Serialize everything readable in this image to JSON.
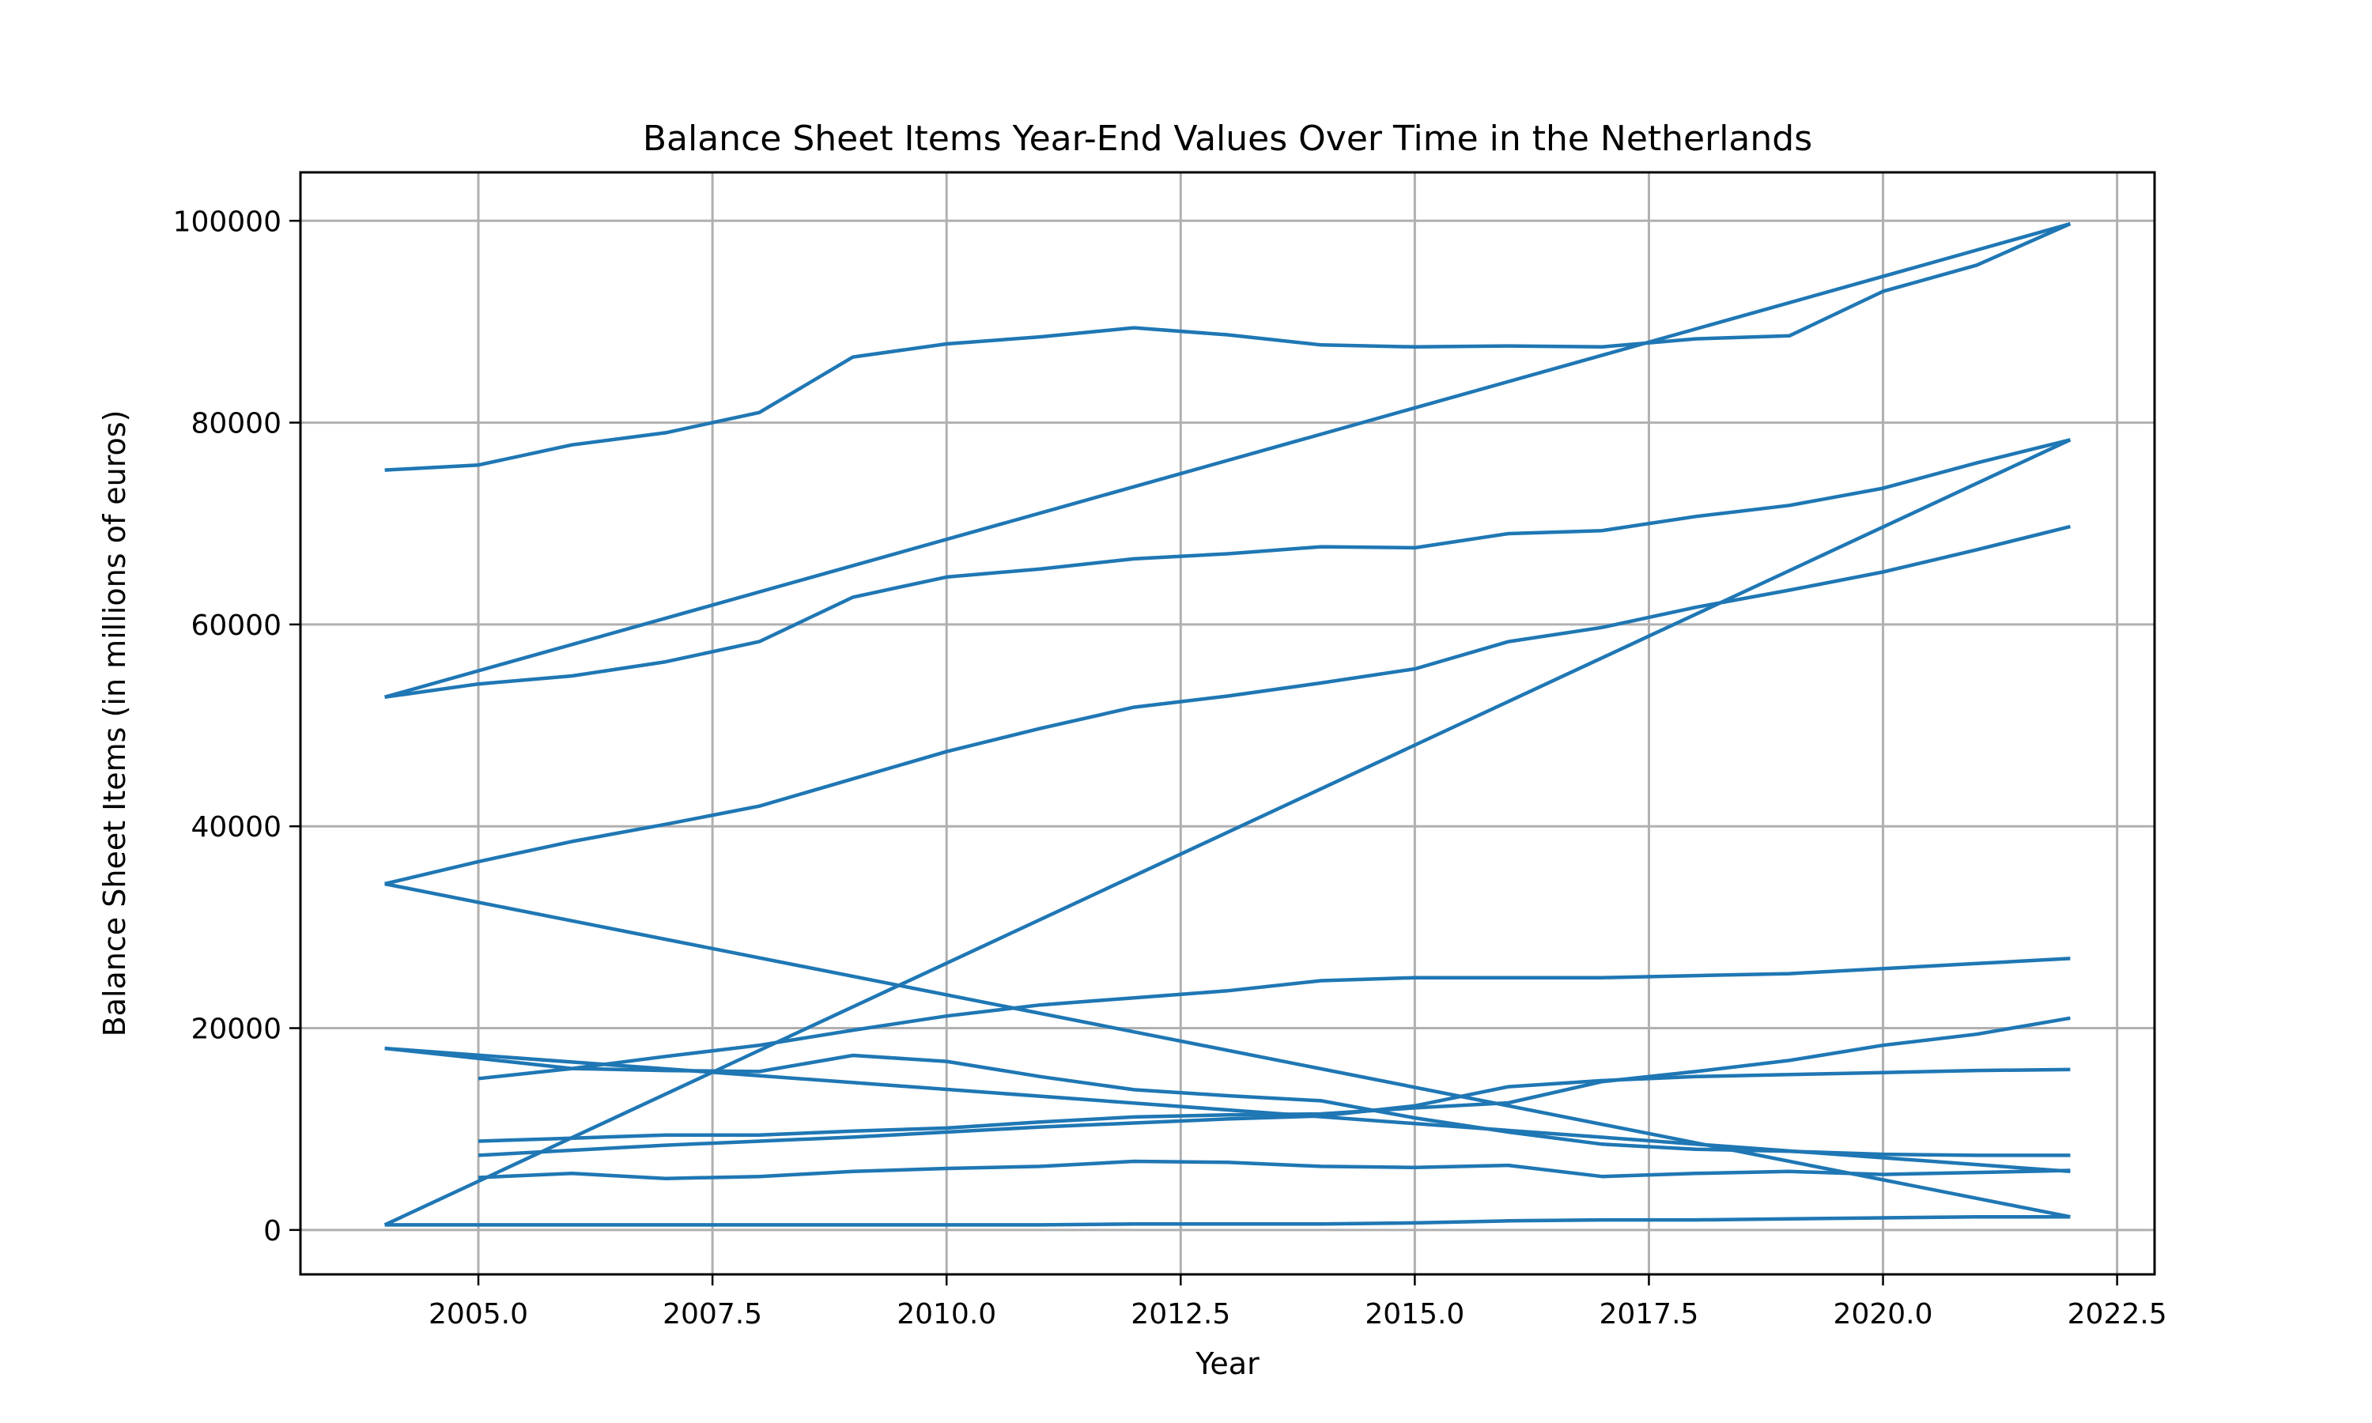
{
  "chart_data": {
    "type": "line",
    "title": "Balance Sheet Items Year-End Values Over Time in the Netherlands",
    "xlabel": "Year",
    "ylabel": "Balance Sheet Items (in millions of euros)",
    "xlim": [
      2003.1,
      2022.9
    ],
    "ylim": [
      -4400,
      104800
    ],
    "xticks": [
      2005.0,
      2007.5,
      2010.0,
      2012.5,
      2015.0,
      2017.5,
      2020.0,
      2022.5
    ],
    "xtick_labels": [
      "2005.0",
      "2007.5",
      "2010.0",
      "2012.5",
      "2015.0",
      "2017.5",
      "2020.0",
      "2022.5"
    ],
    "yticks": [
      0,
      20000,
      40000,
      60000,
      80000,
      100000
    ],
    "ytick_labels": [
      "0",
      "20000",
      "40000",
      "60000",
      "80000",
      "100000"
    ],
    "grid": true,
    "legend": "none",
    "color": "#1f77b4",
    "series": [
      {
        "x": [
          2004,
          2005,
          2006,
          2007,
          2008,
          2009,
          2010,
          2011,
          2012,
          2013,
          2014,
          2015,
          2016,
          2017,
          2018,
          2019,
          2020,
          2021,
          2022
        ],
        "values": [
          75300,
          75800,
          77800,
          79000,
          81000,
          86500,
          87800,
          88500,
          89400,
          88700,
          87700,
          87500,
          87600,
          87500,
          88300,
          88600,
          93000,
          95600,
          99700
        ]
      },
      {
        "x": [
          2004,
          2022
        ],
        "values": [
          52800,
          99700
        ]
      },
      {
        "x": [
          2004,
          2005,
          2006,
          2007,
          2008,
          2009,
          2010,
          2011,
          2012,
          2013,
          2014,
          2015,
          2016,
          2017,
          2018,
          2019,
          2020,
          2021,
          2022
        ],
        "values": [
          52800,
          54100,
          54900,
          56300,
          58300,
          62700,
          64700,
          65500,
          66500,
          67000,
          67700,
          67600,
          69000,
          69300,
          70700,
          71800,
          73500,
          76000,
          78300
        ]
      },
      {
        "x": [
          2004,
          2005,
          2006,
          2007,
          2008,
          2009,
          2010,
          2011,
          2012,
          2013,
          2014,
          2015,
          2016,
          2017,
          2018,
          2019,
          2020,
          2021,
          2022
        ],
        "values": [
          34300,
          36500,
          38500,
          40200,
          42000,
          44700,
          47400,
          49700,
          51800,
          52900,
          54200,
          55600,
          58300,
          59700,
          61700,
          63400,
          65200,
          67400,
          69700
        ]
      },
      {
        "x": [
          2004,
          2022
        ],
        "values": [
          500,
          78300
        ]
      },
      {
        "x": [
          2004,
          2022
        ],
        "values": [
          34300,
          1300
        ]
      },
      {
        "x": [
          2005,
          2006,
          2007,
          2008,
          2009,
          2010,
          2011,
          2012,
          2013,
          2014,
          2015,
          2016,
          2017,
          2018,
          2019,
          2020,
          2021,
          2022
        ],
        "values": [
          15000,
          16000,
          17200,
          18300,
          19800,
          21200,
          22300,
          23000,
          23700,
          24700,
          25000,
          25000,
          25000,
          25200,
          25400,
          25900,
          26400,
          26900
        ]
      },
      {
        "x": [
          2004,
          2022
        ],
        "values": [
          18000,
          5800
        ]
      },
      {
        "x": [
          2004,
          2005,
          2006,
          2007,
          2008,
          2009,
          2010,
          2011,
          2012,
          2013,
          2014,
          2015,
          2016,
          2017,
          2018,
          2019,
          2020,
          2021,
          2022
        ],
        "values": [
          18000,
          17000,
          16000,
          15800,
          15700,
          17300,
          16700,
          15200,
          13900,
          13300,
          12800,
          11100,
          9700,
          8500,
          8000,
          7800,
          7500,
          7400,
          7400
        ]
      },
      {
        "x": [
          2005,
          2006,
          2007,
          2008,
          2009,
          2010,
          2011,
          2012,
          2013,
          2014,
          2015,
          2016,
          2017,
          2018,
          2019,
          2020,
          2021,
          2022
        ],
        "values": [
          7400,
          7900,
          8400,
          8800,
          9200,
          9700,
          10200,
          10600,
          11000,
          11300,
          12300,
          14200,
          14800,
          15200,
          15400,
          15600,
          15800,
          15900
        ]
      },
      {
        "x": [
          2005,
          2006,
          2007,
          2008,
          2009,
          2010,
          2011,
          2012,
          2013,
          2014,
          2015,
          2016,
          2017,
          2018,
          2019,
          2020,
          2021,
          2022
        ],
        "values": [
          8800,
          9100,
          9400,
          9400,
          9800,
          10100,
          10700,
          11200,
          11400,
          11500,
          12100,
          12600,
          14700,
          15700,
          16800,
          18300,
          19400,
          21000
        ]
      },
      {
        "x": [
          2005,
          2006,
          2007,
          2008,
          2009,
          2010,
          2011,
          2012,
          2013,
          2014,
          2015,
          2016,
          2017,
          2018,
          2019,
          2020,
          2021,
          2022
        ],
        "values": [
          5200,
          5600,
          5100,
          5300,
          5800,
          6100,
          6300,
          6800,
          6700,
          6300,
          6200,
          6400,
          5300,
          5600,
          5800,
          5500,
          5700,
          5900
        ]
      },
      {
        "x": [
          2004,
          2005,
          2006,
          2007,
          2008,
          2009,
          2010,
          2011,
          2012,
          2013,
          2014,
          2015,
          2016,
          2017,
          2018,
          2019,
          2020,
          2021,
          2022
        ],
        "values": [
          500,
          500,
          500,
          500,
          500,
          500,
          500,
          500,
          600,
          600,
          600,
          700,
          900,
          1000,
          1000,
          1100,
          1200,
          1300,
          1300
        ]
      }
    ]
  }
}
